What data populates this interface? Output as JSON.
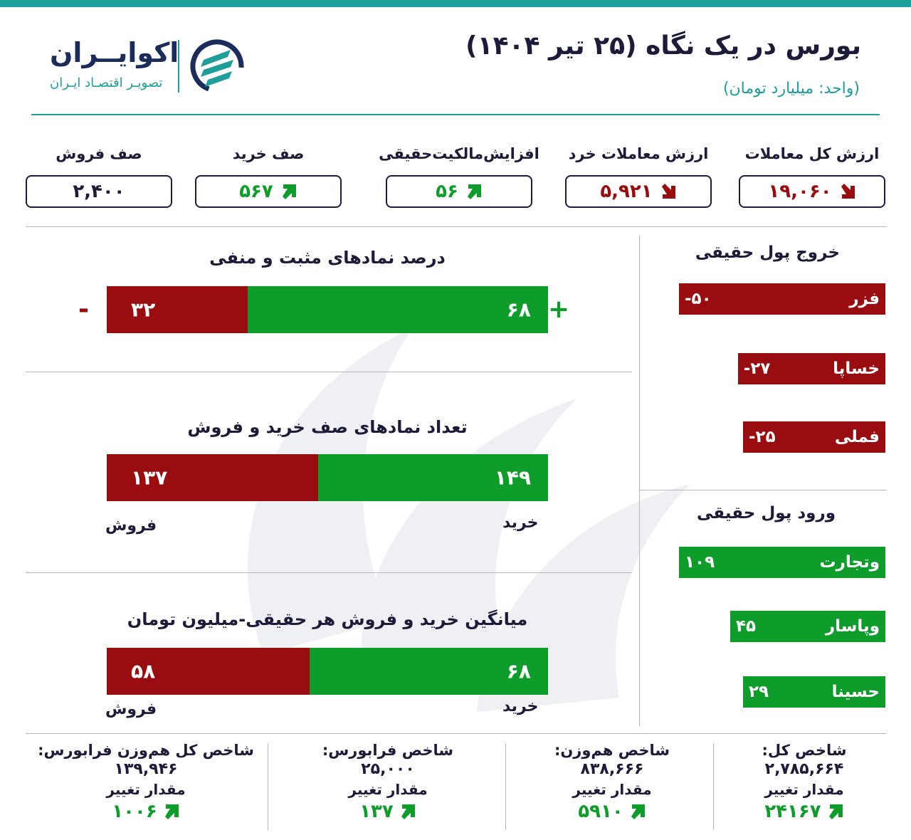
{
  "header": {
    "title": "بورس در یک نگاه (۲۵ تیر ۱۴۰۴)",
    "unit": "(واحد: میلیارد تومان)",
    "logo_name": "اکوایــران",
    "logo_sub": "تصویـر اقتصـاد ایـران"
  },
  "colors": {
    "teal": "#1f9f9a",
    "navy": "#1c1c3a",
    "red": "#990d10",
    "green": "#0e9c2a"
  },
  "stats": [
    {
      "label": "ارزش کل معاملات",
      "value": "۱۹,۰۶۰",
      "trend": "down"
    },
    {
      "label": "ارزش معاملات خرد",
      "value": "۵,۹۲۱",
      "trend": "down"
    },
    {
      "label": "افزایش‌مالکیت‌حقیقی",
      "value": "۵۶",
      "trend": "up"
    },
    {
      "label": "صف خرید",
      "value": "۵۶۷",
      "trend": "up"
    },
    {
      "label": "صف فروش",
      "value": "۲,۴۰۰",
      "trend": "none"
    }
  ],
  "chart_data": [
    {
      "type": "bar",
      "title": "درصد نمادهای مثبت و منفی",
      "series": [
        {
          "name": "+",
          "value": 68,
          "label": "۶۸",
          "color": "#0e9c2a"
        },
        {
          "name": "-",
          "value": 32,
          "label": "۳۲",
          "color": "#990d10"
        }
      ]
    },
    {
      "type": "bar",
      "title": "تعداد نمادهای صف خرید و فروش",
      "series": [
        {
          "name": "خرید",
          "value": 149,
          "label": "۱۴۹",
          "color": "#0e9c2a"
        },
        {
          "name": "فروش",
          "value": 137,
          "label": "۱۳۷",
          "color": "#990d10"
        }
      ]
    },
    {
      "type": "bar",
      "title": "میانگین خرید و فروش هر حقیقی-میلیون تومان",
      "series": [
        {
          "name": "خرید",
          "value": 68,
          "label": "۶۸",
          "color": "#0e9c2a"
        },
        {
          "name": "فروش",
          "value": 58,
          "label": "۵۸",
          "color": "#990d10"
        }
      ]
    },
    {
      "type": "bar",
      "title": "خروج پول حقیقی",
      "bars": [
        {
          "name": "فزر",
          "value": -50,
          "label": "-۵۰"
        },
        {
          "name": "خساپا",
          "value": -27,
          "label": "-۲۷"
        },
        {
          "name": "فملی",
          "value": -25,
          "label": "-۲۵"
        }
      ]
    },
    {
      "type": "bar",
      "title": "ورود پول حقیقی",
      "bars": [
        {
          "name": "وتجارت",
          "value": 109,
          "label": "۱۰۹"
        },
        {
          "name": "وپاسار",
          "value": 45,
          "label": "۴۵"
        },
        {
          "name": "حسینا",
          "value": 29,
          "label": "۲۹"
        }
      ]
    }
  ],
  "indices": [
    {
      "name": "شاخص کل:",
      "value": "۲,۷۸۵,۶۶۴",
      "change_label": "مقدار تغییر",
      "change": "۲۴۱۶۷"
    },
    {
      "name": "شاخص هم‌وزن:",
      "value": "۸۳۸,۶۶۶",
      "change_label": "مقدار تغییر",
      "change": "۵۹۱۰"
    },
    {
      "name": "شاخص فرابورس:",
      "value": "۲۵,۰۰۰",
      "change_label": "مقدار تغییر",
      "change": "۱۳۷"
    },
    {
      "name": "شاخص کل هم‌وزن فرابورس:",
      "value": "۱۳۹,۹۴۶",
      "change_label": "مقدار تغییر",
      "change": "۱۰۰۶"
    }
  ]
}
